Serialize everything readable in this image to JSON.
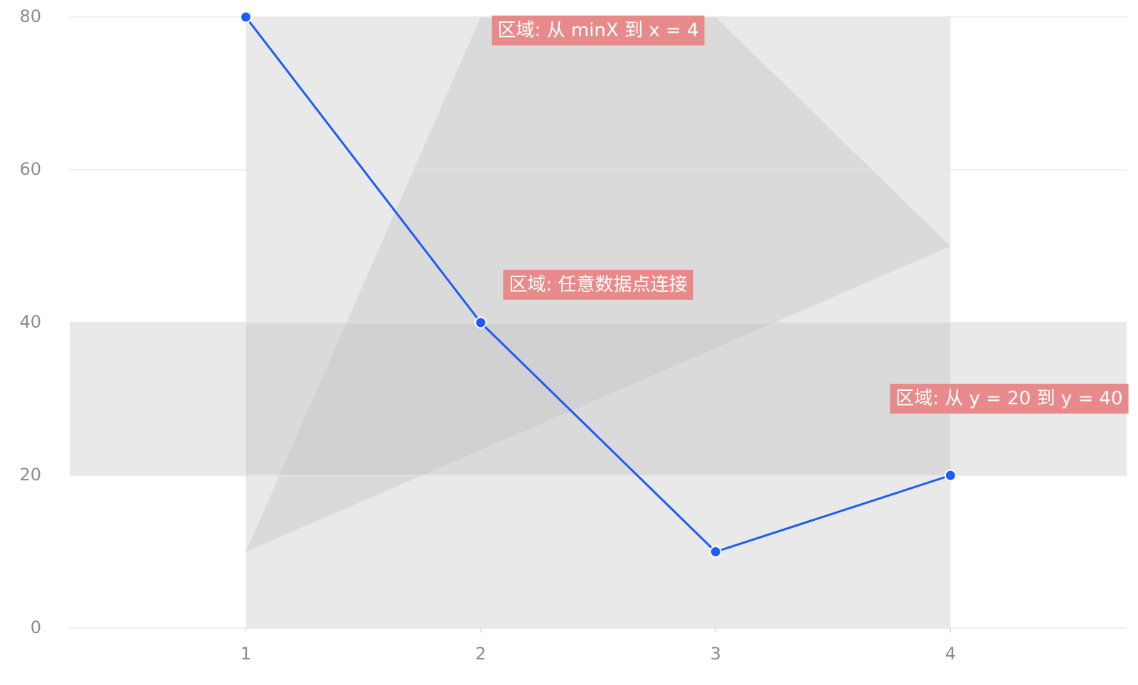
{
  "chart_data": {
    "type": "line",
    "title": "",
    "xlabel": "",
    "ylabel": "",
    "x": [
      1,
      2,
      3,
      4
    ],
    "y_ticks": [
      0,
      20,
      40,
      60,
      80
    ],
    "xlim": [
      0.25,
      4.75
    ],
    "ylim": [
      0,
      80
    ],
    "grid": true,
    "series": [
      {
        "values": [
          80,
          40,
          10,
          20
        ],
        "color": "#1f5cf5"
      }
    ],
    "regions": [
      {
        "kind": "x-range",
        "from": "minX",
        "to": 4
      },
      {
        "kind": "y-range",
        "from": 20,
        "to": 40
      },
      {
        "kind": "polygon",
        "points": [
          [
            1,
            10
          ],
          [
            2,
            80
          ],
          [
            3,
            80
          ],
          [
            4,
            50
          ]
        ]
      }
    ],
    "annotations": [
      {
        "text": "区域: 从 minX 到 x = 4",
        "x": 2.5,
        "y": 78.2
      },
      {
        "text": "区域: 任意数据点连接",
        "x": 2.5,
        "y": 44.9
      },
      {
        "text": "区域: 从 y = 20 到 y = 40",
        "x": 4.25,
        "y": 30
      }
    ],
    "colors": {
      "line": "#1f5cf5",
      "region": "#bfbfbf",
      "label_bg": "#e88a8a",
      "label_text": "#ffffff",
      "grid": "#e5e5e5",
      "tick_text": "#8c8c8c"
    }
  }
}
